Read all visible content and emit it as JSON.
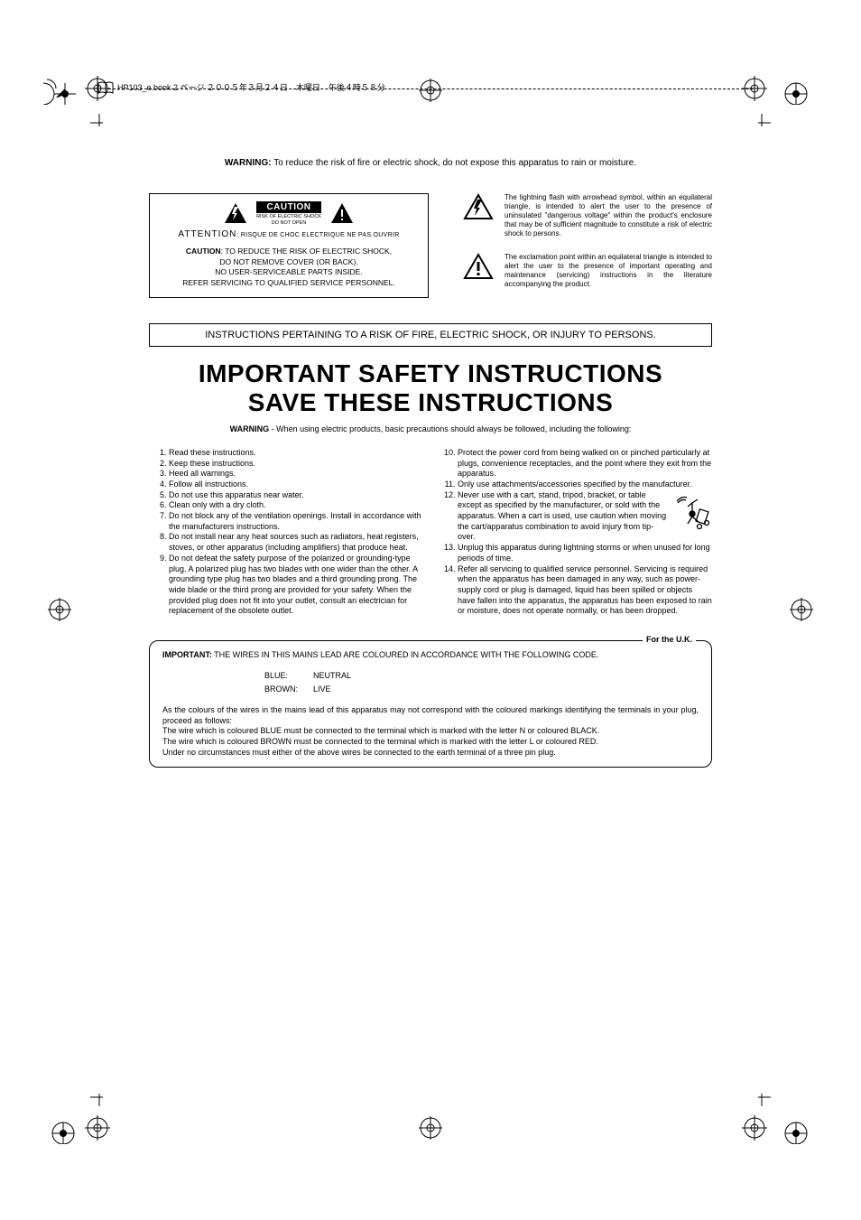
{
  "header": {
    "text": "HP103_e.book 2 ページ ２００５年３月２４日　木曜日　午後４時５８分"
  },
  "warning_top": {
    "label": "WARNING:",
    "text": "To reduce the risk of fire or electric shock, do not expose this apparatus to rain or moisture."
  },
  "caution_box": {
    "badge": "CAUTION",
    "risk1": "RISK OF ELECTRIC SHOCK",
    "risk2": "DO NOT OPEN",
    "attention_big": "ATTENTION",
    "attention_small": ": RISQUE DE CHOC ELECTRIQUE NE PAS OUVRIR",
    "body_label": "CAUTION",
    "body_l1": ": TO REDUCE THE RISK OF ELECTRIC SHOCK,",
    "body_l2": "DO NOT REMOVE COVER (OR BACK).",
    "body_l3": "NO USER-SERVICEABLE PARTS INSIDE.",
    "body_l4": "REFER SERVICING TO QUALIFIED SERVICE PERSONNEL."
  },
  "explain": {
    "flash": "The lightning flash with arrowhead symbol, within an equilateral triangle, is intended to alert the user to the presence of uninsulated \"dangerous voltage\" within the product's enclosure that may be of sufficient magnitude to constitute a risk of electric shock to persons.",
    "excl": "The exclamation point within an equilateral triangle is intended to alert the user to the presence of important operating and maintenance (servicing) instructions in the literature accompanying the product."
  },
  "subhead": "INSTRUCTIONS PERTAINING TO A RISK OF FIRE, ELECTRIC SHOCK, OR INJURY TO PERSONS.",
  "title1": "IMPORTANT SAFETY INSTRUCTIONS",
  "title2": "SAVE THESE INSTRUCTIONS",
  "subwarning_label": "WARNING",
  "subwarning_text": " - When using electric products, basic precautions should always be followed, including the following:",
  "instructions_left": [
    "Read these instructions.",
    "Keep these instructions.",
    "Heed all warnings.",
    "Follow all instructions.",
    "Do not use this apparatus near water.",
    "Clean only with a dry cloth.",
    "Do not block any of the ventilation openings. Install in accordance with the manufacturers instructions.",
    "Do not install near any heat sources such as radiators, heat registers, stoves, or other apparatus (including amplifiers) that produce heat.",
    "Do not defeat the safety purpose of the polarized or grounding-type plug. A polarized plug has two blades with one wider than the other. A grounding type plug has two blades and a third grounding prong. The wide blade or the third prong are provided for your safety. When the provided plug does not fit into your outlet, consult an electrician for replacement of the obsolete outlet."
  ],
  "instructions_right": [
    "Protect the power cord from being walked on or pinched particularly at plugs, convenience receptacles, and the point where they exit from the apparatus.",
    "Only use attachments/accessories specified by the manufacturer.",
    "Never use with a cart, stand, tripod, bracket, or table except as specified by the manufacturer, or sold with the apparatus. When a cart is used, use caution when moving the cart/apparatus combination to avoid injury from tip-over.",
    "Unplug this apparatus during lightning storms or when unused for long periods of time.",
    "Refer all servicing to qualified service personnel. Servicing is required when the apparatus has been damaged in any way, such as power-supply cord or plug is damaged, liquid has been spilled or objects have fallen into the apparatus, the apparatus has been exposed to rain or moisture, does not operate normally, or has been dropped."
  ],
  "uk": {
    "label": "For the U.K.",
    "important_label": "IMPORTANT:",
    "important_text": "THE WIRES IN THIS MAINS LEAD ARE COLOURED IN ACCORDANCE WITH THE FOLLOWING CODE.",
    "blue_l": "BLUE:",
    "blue_v": "NEUTRAL",
    "brown_l": "BROWN:",
    "brown_v": "LIVE",
    "p1": "As the colours of the wires in the mains lead of this apparatus may not correspond with the coloured markings identifying the terminals in your plug, proceed as follows:",
    "p2": "The wire which is coloured BLUE must be connected to the terminal which is marked with the letter N or coloured BLACK.",
    "p3": "The wire which is coloured BROWN must be connected to the terminal which is marked with the letter L or coloured RED.",
    "p4": "Under no circumstances must either of the above wires be connected to the earth terminal of a three pin plug."
  }
}
